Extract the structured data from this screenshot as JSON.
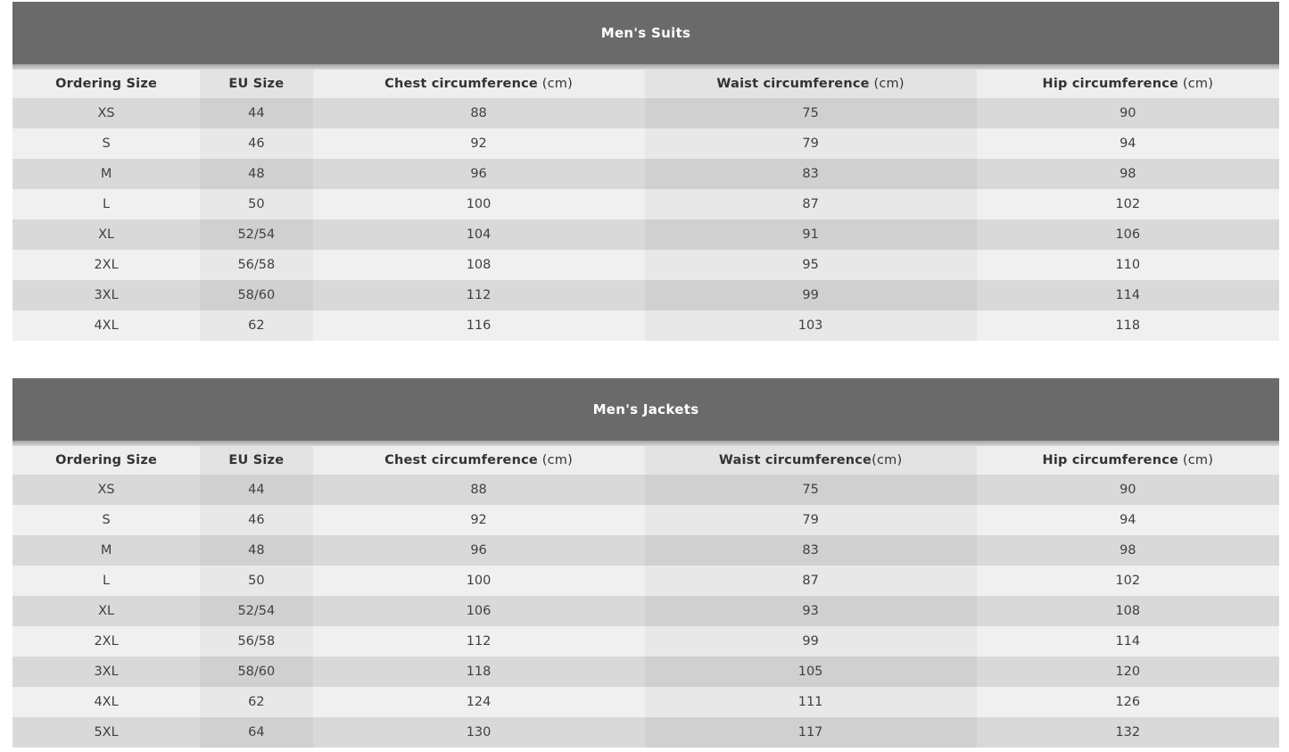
{
  "theme": {
    "title_band_bg": "#6a6a6a",
    "title_text_color": "#ffffff",
    "header_text_color": "#333333",
    "cell_text_color": "#404040",
    "header_row_bg_odd_col": "#eeeeee",
    "header_row_bg_even_col": "#e3e3e3",
    "row_dark_odd_col": "#d9d9d9",
    "row_dark_even_col": "#d0d0d0",
    "row_light_odd_col": "#f0f0f0",
    "row_light_even_col": "#e8e8e8"
  },
  "tables": [
    {
      "title": "Men's Suits",
      "columns": [
        {
          "name": "Ordering Size",
          "unit": ""
        },
        {
          "name": "EU Size",
          "unit": ""
        },
        {
          "name": "Chest circumference",
          "unit": " (cm)"
        },
        {
          "name": "Waist circumference",
          "unit": " (cm)"
        },
        {
          "name": "Hip circumference",
          "unit": " (cm)"
        }
      ],
      "rows": [
        [
          "XS",
          "44",
          "88",
          "75",
          "90"
        ],
        [
          "S",
          "46",
          "92",
          "79",
          "94"
        ],
        [
          "M",
          "48",
          "96",
          "83",
          "98"
        ],
        [
          "L",
          "50",
          "100",
          "87",
          "102"
        ],
        [
          "XL",
          "52/54",
          "104",
          "91",
          "106"
        ],
        [
          "2XL",
          "56/58",
          "108",
          "95",
          "110"
        ],
        [
          "3XL",
          "58/60",
          "112",
          "99",
          "114"
        ],
        [
          "4XL",
          "62",
          "116",
          "103",
          "118"
        ]
      ]
    },
    {
      "title": "Men's Jackets",
      "columns": [
        {
          "name": "Ordering Size",
          "unit": ""
        },
        {
          "name": "EU Size",
          "unit": ""
        },
        {
          "name": "Chest circumference",
          "unit": " (cm)"
        },
        {
          "name": "Waist circumference",
          "unit": "(cm)"
        },
        {
          "name": "Hip circumference",
          "unit": " (cm)"
        }
      ],
      "rows": [
        [
          "XS",
          "44",
          "88",
          "75",
          "90"
        ],
        [
          "S",
          "46",
          "92",
          "79",
          "94"
        ],
        [
          "M",
          "48",
          "96",
          "83",
          "98"
        ],
        [
          "L",
          "50",
          "100",
          "87",
          "102"
        ],
        [
          "XL",
          "52/54",
          "106",
          "93",
          "108"
        ],
        [
          "2XL",
          "56/58",
          "112",
          "99",
          "114"
        ],
        [
          "3XL",
          "58/60",
          "118",
          "105",
          "120"
        ],
        [
          "4XL",
          "62",
          "124",
          "111",
          "126"
        ],
        [
          "5XL",
          "64",
          "130",
          "117",
          "132"
        ]
      ]
    }
  ]
}
